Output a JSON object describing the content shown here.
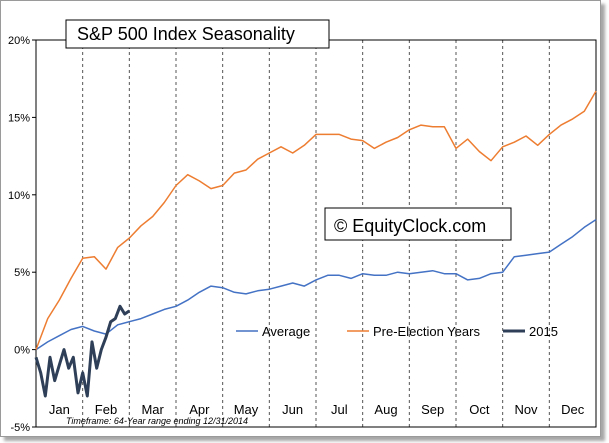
{
  "chart_data": {
    "type": "line",
    "title": "S&P 500 Index Seasonality",
    "watermark": "© EquityClock.com",
    "footnote": "Timeframe: 64-Year range ending 12/31/2014",
    "xlabel": "",
    "ylabel": "",
    "months": [
      "Jan",
      "Feb",
      "Mar",
      "Apr",
      "May",
      "Jun",
      "Jul",
      "Aug",
      "Sep",
      "Oct",
      "Nov",
      "Dec"
    ],
    "x_range": [
      0,
      12
    ],
    "ylim": [
      -5,
      20
    ],
    "y_ticks": [
      -5,
      0,
      5,
      10,
      15,
      20
    ],
    "y_tick_labels": [
      "-5%",
      "0%",
      "5%",
      "10%",
      "15%",
      "20%"
    ],
    "grid": "vertical dashed at month boundaries",
    "legend_position": "bottom-right",
    "series": [
      {
        "name": "Average",
        "color": "#4472c4",
        "x": [
          0,
          0.25,
          0.5,
          0.75,
          1.0,
          1.25,
          1.5,
          1.75,
          2.0,
          2.25,
          2.5,
          2.75,
          3.0,
          3.25,
          3.5,
          3.75,
          4.0,
          4.25,
          4.5,
          4.75,
          5.0,
          5.25,
          5.5,
          5.75,
          6.0,
          6.25,
          6.5,
          6.75,
          7.0,
          7.25,
          7.5,
          7.75,
          8.0,
          8.25,
          8.5,
          8.75,
          9.0,
          9.25,
          9.5,
          9.75,
          10.0,
          10.25,
          10.5,
          10.75,
          11.0,
          11.25,
          11.5,
          11.75,
          12.0
        ],
        "values": [
          0.0,
          0.5,
          0.9,
          1.3,
          1.5,
          1.2,
          1.0,
          1.6,
          1.8,
          2.0,
          2.3,
          2.6,
          2.8,
          3.2,
          3.7,
          4.1,
          4.0,
          3.7,
          3.6,
          3.8,
          3.9,
          4.1,
          4.3,
          4.1,
          4.5,
          4.8,
          4.8,
          4.6,
          4.9,
          4.8,
          4.8,
          5.0,
          4.9,
          5.0,
          5.1,
          4.9,
          4.9,
          4.5,
          4.6,
          4.9,
          5.0,
          6.0,
          6.1,
          6.2,
          6.3,
          6.8,
          7.3,
          7.9,
          8.4
        ]
      },
      {
        "name": "Pre-Election Years",
        "color": "#ed7d31",
        "x": [
          0,
          0.25,
          0.5,
          0.75,
          1.0,
          1.25,
          1.5,
          1.75,
          2.0,
          2.25,
          2.5,
          2.75,
          3.0,
          3.25,
          3.5,
          3.75,
          4.0,
          4.25,
          4.5,
          4.75,
          5.0,
          5.25,
          5.5,
          5.75,
          6.0,
          6.25,
          6.5,
          6.75,
          7.0,
          7.25,
          7.5,
          7.75,
          8.0,
          8.25,
          8.5,
          8.75,
          9.0,
          9.25,
          9.5,
          9.75,
          10.0,
          10.25,
          10.5,
          10.75,
          11.0,
          11.25,
          11.5,
          11.75,
          12.0
        ],
        "values": [
          0.0,
          2.0,
          3.2,
          4.6,
          5.9,
          6.0,
          5.2,
          6.6,
          7.2,
          8.0,
          8.6,
          9.5,
          10.6,
          11.3,
          10.9,
          10.4,
          10.6,
          11.4,
          11.6,
          12.3,
          12.7,
          13.1,
          12.7,
          13.2,
          13.9,
          13.9,
          13.9,
          13.6,
          13.5,
          13.0,
          13.4,
          13.7,
          14.2,
          14.5,
          14.4,
          14.4,
          13.0,
          13.6,
          12.8,
          12.2,
          13.1,
          13.4,
          13.8,
          13.2,
          13.9,
          14.5,
          14.9,
          15.4,
          16.7
        ]
      },
      {
        "name": "2015",
        "color": "#2e3f57",
        "x": [
          0,
          0.1,
          0.2,
          0.3,
          0.4,
          0.5,
          0.6,
          0.7,
          0.8,
          0.9,
          1.0,
          1.1,
          1.2,
          1.3,
          1.4,
          1.5,
          1.6,
          1.7,
          1.8,
          1.9,
          2.0
        ],
        "values": [
          -0.5,
          -1.5,
          -3.0,
          -0.5,
          -2.0,
          -1.0,
          0.0,
          -1.2,
          -0.5,
          -2.8,
          -1.5,
          -3.0,
          0.5,
          -1.2,
          0.0,
          0.8,
          1.8,
          2.0,
          2.8,
          2.3,
          2.5
        ]
      }
    ]
  }
}
